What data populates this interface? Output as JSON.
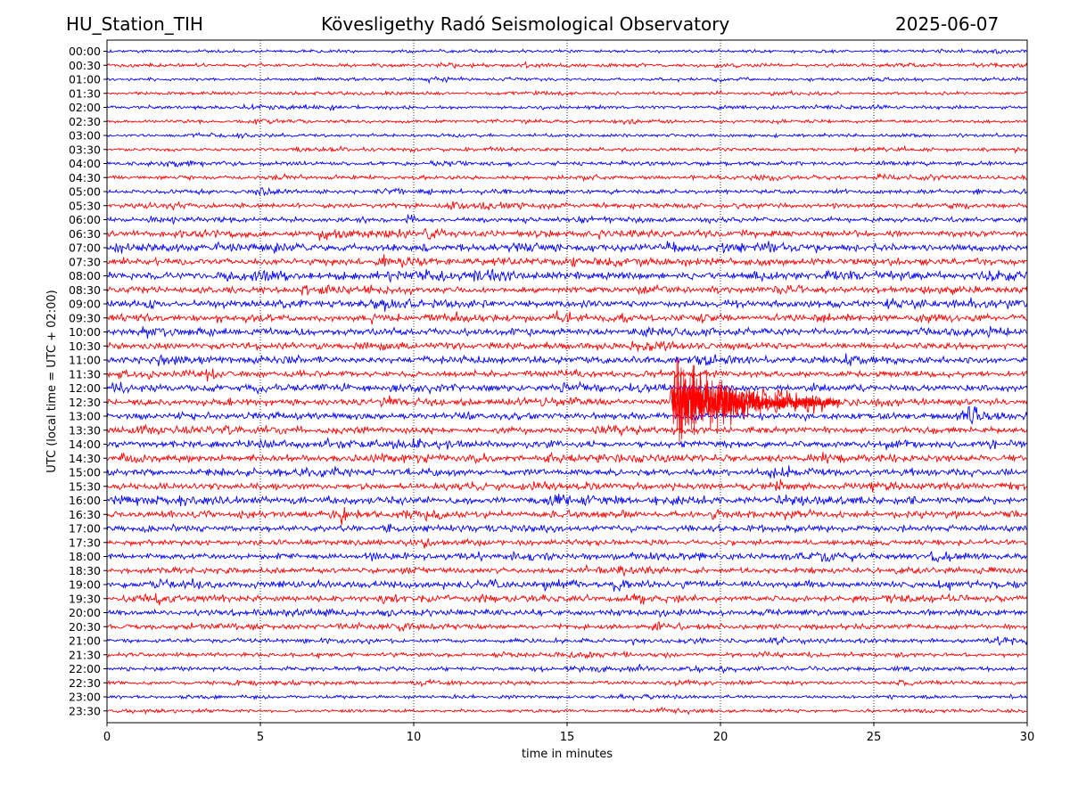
{
  "header": {
    "station": "HU_Station_TIH",
    "observatory": "Kövesligethy Radó Seismological Observatory",
    "date": "2025-06-07"
  },
  "chart_data": {
    "type": "line",
    "title": "Kövesligethy Radó Seismological Observatory",
    "xlabel": "time in minutes",
    "ylabel": "UTC (local time = UTC + 02:00)",
    "xlim": [
      0,
      30
    ],
    "xticks": [
      0,
      5,
      10,
      15,
      20,
      25,
      30
    ],
    "grid": "vertical dotted at each x tick",
    "series_colors": [
      "#0000ff",
      "#ff0000"
    ],
    "rows": [
      "00:00",
      "00:30",
      "01:00",
      "01:30",
      "02:00",
      "02:30",
      "03:00",
      "03:30",
      "04:00",
      "04:30",
      "05:00",
      "05:30",
      "06:00",
      "06:30",
      "07:00",
      "07:30",
      "08:00",
      "08:30",
      "09:00",
      "09:30",
      "10:00",
      "10:30",
      "11:00",
      "11:30",
      "12:00",
      "12:30",
      "13:00",
      "13:30",
      "14:00",
      "14:30",
      "15:00",
      "15:30",
      "16:00",
      "16:30",
      "17:00",
      "17:30",
      "18:00",
      "18:30",
      "19:00",
      "19:30",
      "20:00",
      "20:30",
      "21:00",
      "21:30",
      "22:00",
      "22:30",
      "23:00",
      "23:30"
    ],
    "row_noise_level": [
      0.3,
      0.32,
      0.28,
      0.3,
      0.32,
      0.3,
      0.3,
      0.32,
      0.35,
      0.38,
      0.4,
      0.42,
      0.45,
      0.55,
      0.65,
      0.65,
      0.7,
      0.62,
      0.65,
      0.65,
      0.65,
      0.62,
      0.6,
      0.58,
      0.62,
      0.62,
      0.65,
      0.62,
      0.62,
      0.62,
      0.62,
      0.62,
      0.62,
      0.6,
      0.6,
      0.55,
      0.55,
      0.5,
      0.55,
      0.55,
      0.52,
      0.45,
      0.42,
      0.4,
      0.38,
      0.35,
      0.3,
      0.3
    ],
    "events": [
      {
        "row": "09:00",
        "minute": 1.3,
        "amplitude": 2.0,
        "duration_min": 0.3
      },
      {
        "row": "06:00",
        "minute": 9.8,
        "amplitude": 1.3,
        "duration_min": 0.3
      },
      {
        "row": "06:30",
        "minute": 10.4,
        "amplitude": 1.3,
        "duration_min": 0.3
      },
      {
        "row": "16:30",
        "minute": 7.7,
        "amplitude": 1.5,
        "duration_min": 0.2
      },
      {
        "row": "17:00",
        "minute": 9.1,
        "amplitude": 1.6,
        "duration_min": 0.3
      },
      {
        "row": "19:00",
        "minute": 12.5,
        "amplitude": 1.3,
        "duration_min": 0.2
      },
      {
        "row": "13:00",
        "minute": 28.1,
        "amplitude": 1.7,
        "duration_min": 0.4
      },
      {
        "row": "16:00",
        "minute": 26.2,
        "amplitude": 1.3,
        "duration_min": 0.3
      },
      {
        "row": "12:30",
        "minute": 18.4,
        "amplitude": 5.0,
        "duration_min": 5.5,
        "note": "large red event"
      }
    ]
  }
}
